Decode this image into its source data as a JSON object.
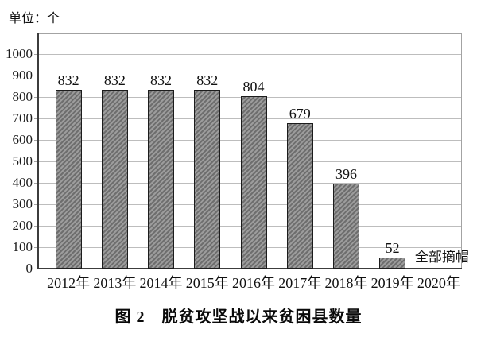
{
  "figure": {
    "unit_label": "单位：个",
    "caption": "图 2　脱贫攻坚战以来贫困县数量"
  },
  "chart_data": {
    "type": "bar",
    "title": "图 2　脱贫攻坚战以来贫困县数量",
    "unit_label": "单位：个",
    "categories": [
      "2012年",
      "2013年",
      "2014年",
      "2015年",
      "2016年",
      "2017年",
      "2018年",
      "2019年",
      "2020年"
    ],
    "values": [
      832,
      832,
      832,
      832,
      804,
      679,
      396,
      52,
      null
    ],
    "bar_labels": [
      "832",
      "832",
      "832",
      "832",
      "804",
      "679",
      "396",
      "52",
      ""
    ],
    "annotation": {
      "text": "全部摘帽",
      "category": "2020年",
      "meaning": "all counties delisted"
    },
    "xlabel": "",
    "ylabel": "",
    "ylim": [
      0,
      1100
    ],
    "yticks": [
      0,
      100,
      200,
      300,
      400,
      500,
      600,
      700,
      800,
      900,
      1000
    ],
    "grid": true,
    "legend_position": "none",
    "colors": {
      "bar_fill": "#9c9c9c",
      "bar_hatch": "#6e6e6e",
      "bar_border": "#1c1c1c",
      "gridline": "#bdbdbd",
      "axis": "#3c3c3c",
      "frame": "#a3a3a3",
      "text": "#111111",
      "background": "#ffffff",
      "outer_border": "#c9c9c9"
    }
  }
}
